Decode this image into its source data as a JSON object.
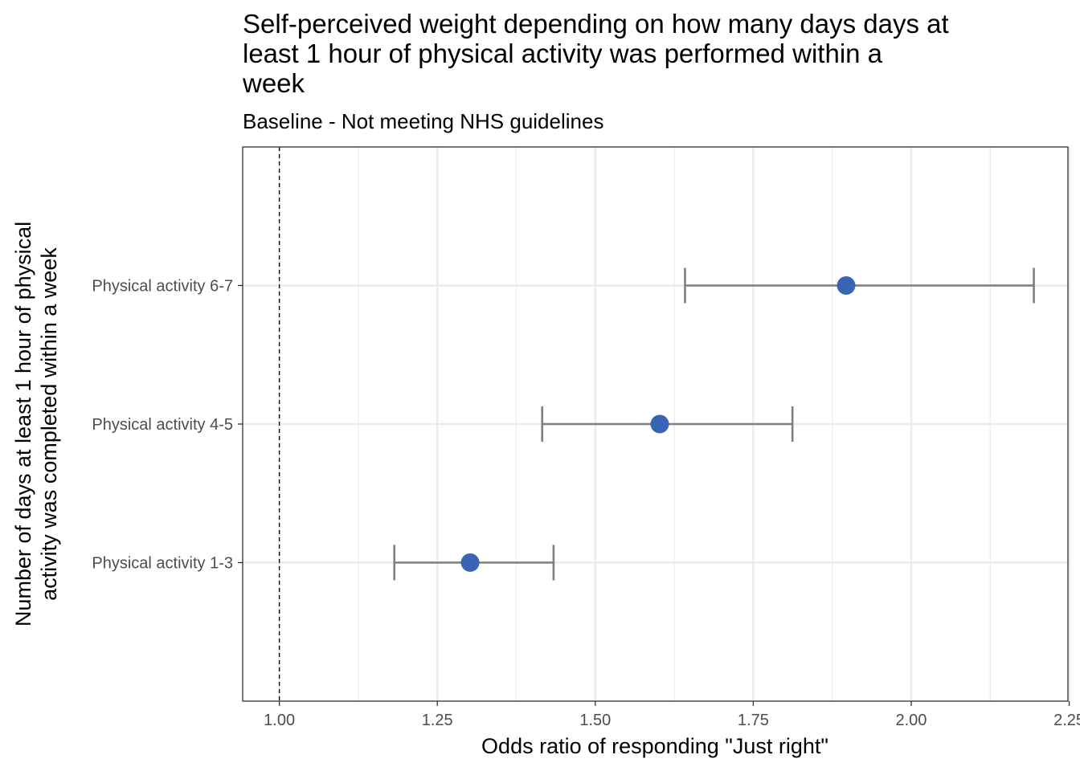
{
  "chart_data": {
    "type": "scatter",
    "title_lines": [
      "Self-perceived weight depending on how many days days at",
      "least 1 hour of physical activity was performed within a",
      "week"
    ],
    "subtitle": "Baseline - Not meeting NHS guidelines",
    "xlabel": "Odds ratio of responding \"Just right\"",
    "ylabel_lines": [
      "Number of days at least 1 hour of physical",
      "activity was completed within a week"
    ],
    "xlim": [
      0.942,
      2.248
    ],
    "x_ticks": [
      1.0,
      1.25,
      1.5,
      1.75,
      2.0,
      2.25
    ],
    "x_tick_labels": [
      "1.00",
      "1.25",
      "1.50",
      "1.75",
      "2.00",
      "2.25"
    ],
    "reference_line": 1.0,
    "grid": true,
    "categories": [
      "Physical activity 1-3",
      "Physical activity 4-5",
      "Physical activity 6-7"
    ],
    "series": [
      {
        "estimate": [
          1.302,
          1.602,
          1.897
        ],
        "ci_low": [
          1.182,
          1.416,
          1.642
        ],
        "ci_high": [
          1.434,
          1.812,
          2.194
        ]
      }
    ],
    "colors": {
      "point": "#3864b3",
      "errorbar": "#7f7f7f",
      "grid": "#ebebeb",
      "refline": "#000000"
    }
  }
}
